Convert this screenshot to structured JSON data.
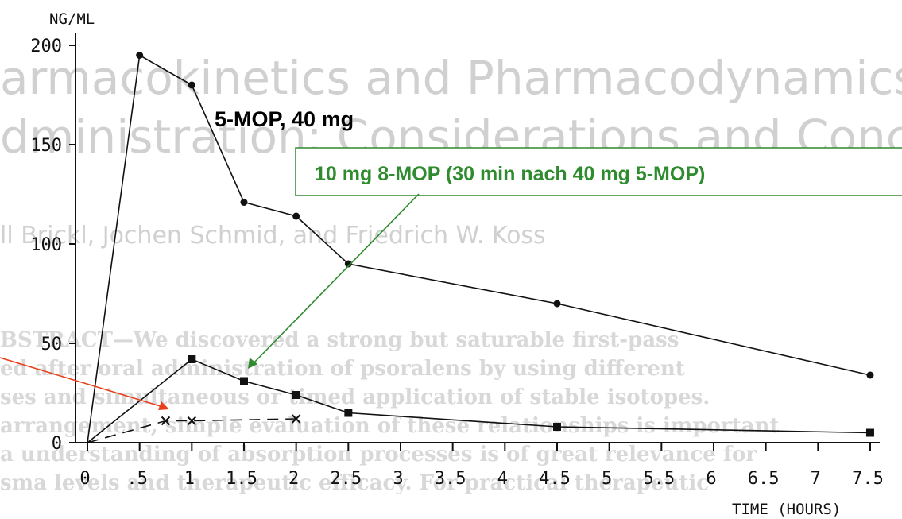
{
  "chart_data": {
    "type": "line",
    "ylabel": "NG/ML",
    "xlabel": "TIME (HOURS)",
    "ylim": [
      0,
      200
    ],
    "xlim": [
      0,
      7.5
    ],
    "yticks": [
      "0",
      "50",
      "100",
      "150",
      "200"
    ],
    "xtick_labels": [
      {
        "x": 0,
        "label": "0"
      },
      {
        "x": 0.5,
        "label": ".5"
      },
      {
        "x": 1,
        "label": "1"
      },
      {
        "x": 1.5,
        "label": "1.5"
      },
      {
        "x": 2,
        "label": "2"
      },
      {
        "x": 2.5,
        "label": "2.5"
      },
      {
        "x": 3,
        "label": "3"
      },
      {
        "x": 3.5,
        "label": "3.5"
      },
      {
        "x": 4,
        "label": "4"
      },
      {
        "x": 4.5,
        "label": "4.5"
      },
      {
        "x": 5,
        "label": "5"
      },
      {
        "x": 5.5,
        "label": "5.5"
      },
      {
        "x": 6,
        "label": "6"
      },
      {
        "x": 6.5,
        "label": "6.5"
      },
      {
        "x": 7,
        "label": "7"
      },
      {
        "x": 7.5,
        "label": "7.5"
      }
    ],
    "series": [
      {
        "name": "5-MOP, 40 mg",
        "marker": "circle",
        "style": "solid",
        "points": [
          [
            0,
            0
          ],
          [
            0.5,
            195
          ],
          [
            1,
            180
          ],
          [
            1.5,
            121
          ],
          [
            2,
            114
          ],
          [
            2.5,
            90
          ],
          [
            4.5,
            70
          ],
          [
            7.5,
            34
          ]
        ]
      },
      {
        "name": "10 mg 8-MOP (30 min nach 40 mg 5-MOP)",
        "marker": "square",
        "style": "solid",
        "points": [
          [
            0,
            0
          ],
          [
            1,
            42
          ],
          [
            1.5,
            31
          ],
          [
            2,
            24
          ],
          [
            2.5,
            15
          ],
          [
            4.5,
            8
          ],
          [
            7.5,
            5
          ]
        ]
      },
      {
        "marker": "x",
        "style": "dashed",
        "points": [
          [
            0,
            0
          ],
          [
            0.75,
            11
          ],
          [
            1,
            11
          ],
          [
            2,
            12
          ]
        ]
      }
    ],
    "grid": false
  },
  "background_text": {
    "line1": "armacokinetics and Pharmacodynamics o",
    "line2": "dministration: Considerations and Conclu",
    "line3": "ll Brickl, Jochen Schmid, and Friedrich W. Koss",
    "body": [
      "BSTRACT—We discovered a strong but saturable first-pass",
      "ed after oral administration of psoralens by using different",
      "ses and simultaneous or timed application of stable isotopes.",
      "arrangement, simple evaluation of these relationships is important",
      "a understanding of absorption processes is of great relevance for",
      "sma levels and therapeutic efficacy. For practical therapeutic"
    ]
  },
  "colors": {
    "annotation_green": "#2e8b2e",
    "arrow_red": "#e8401c"
  }
}
